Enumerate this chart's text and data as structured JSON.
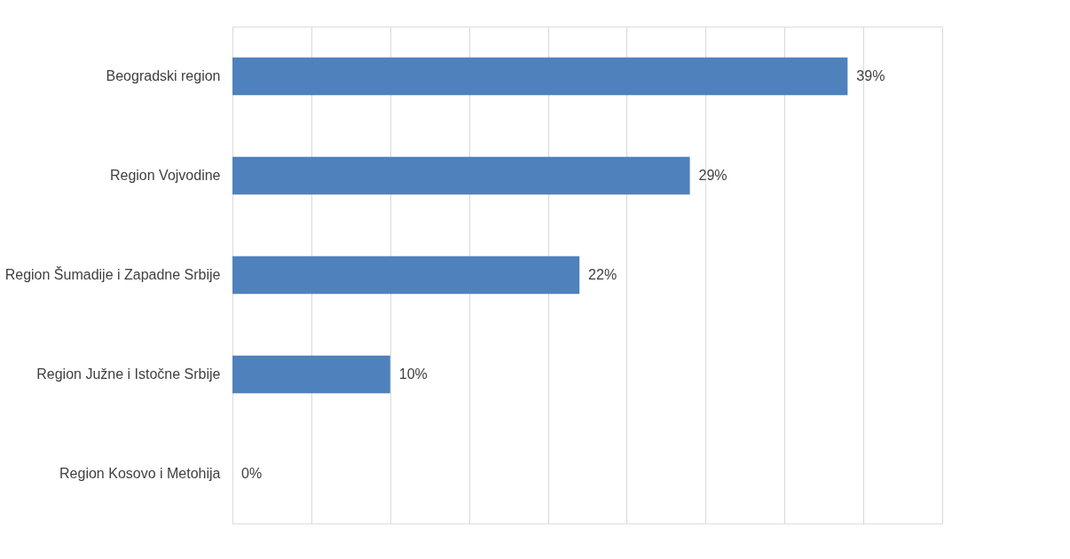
{
  "chart_data": {
    "type": "bar",
    "orientation": "horizontal",
    "categories": [
      "Beogradski region",
      "Region Vojvodine",
      "Region Šumadije i Zapadne Srbije",
      "Region Južne i Istočne Srbije",
      "Region Kosovo i Metohija"
    ],
    "values": [
      39,
      29,
      22,
      10,
      0
    ],
    "value_labels": [
      "39%",
      "29%",
      "22%",
      "10%",
      "0%"
    ],
    "color": "#4f81bd",
    "xlim": [
      0,
      45
    ],
    "xticks": [
      {
        "value": 0,
        "label": null
      },
      {
        "value": 5,
        "label": null
      },
      {
        "value": 10,
        "label": null
      },
      {
        "value": 15,
        "label": null
      },
      {
        "value": 20,
        "label": null
      },
      {
        "value": 25,
        "label": null
      },
      {
        "value": 30,
        "label": null
      },
      {
        "value": 35,
        "label": null
      },
      {
        "value": 40,
        "label": null
      },
      {
        "value": 45,
        "label": null
      }
    ],
    "grid": "x",
    "tick_labels": "y"
  }
}
